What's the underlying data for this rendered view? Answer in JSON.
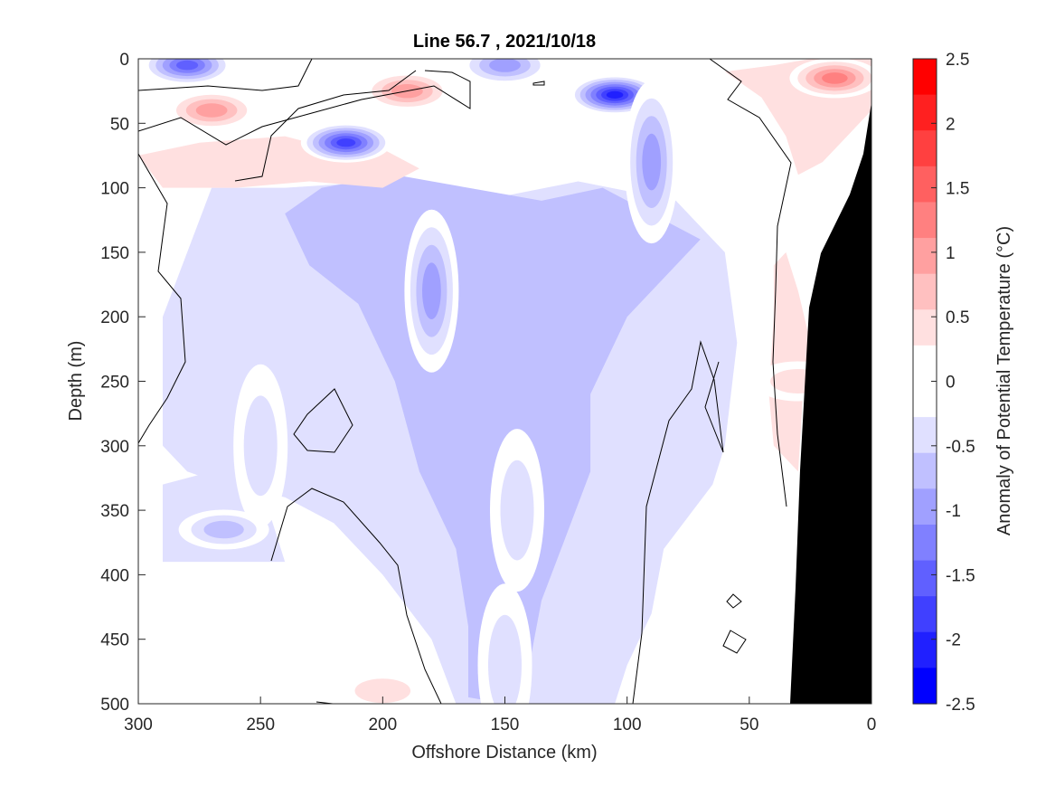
{
  "chart_data": {
    "type": "heatmap",
    "title": "Line 56.7 , 2021/10/18",
    "xlabel": "Offshore Distance (km)",
    "ylabel": "Depth (m)",
    "colorbar_label": "Anomaly of Potential Temperature (°C)",
    "xlim": [
      300,
      0
    ],
    "ylim": [
      0,
      500
    ],
    "x_reversed": true,
    "y_reversed": true,
    "x_ticks": [
      300,
      250,
      200,
      150,
      100,
      50,
      0
    ],
    "y_ticks": [
      0,
      50,
      100,
      150,
      200,
      250,
      300,
      350,
      400,
      450,
      500
    ],
    "colorbar": {
      "range": [
        -2.5,
        2.5
      ],
      "step": 0.25,
      "tick_values": [
        2.5,
        2,
        1.5,
        1,
        0.5,
        0,
        -0.5,
        -1,
        -1.5,
        -2,
        -2.5
      ],
      "tick_labels": [
        "2.5",
        "2",
        "1.5",
        "1",
        "0.5",
        "0",
        "-0.5",
        "-1",
        "-1.5",
        "-2",
        "-2.5"
      ],
      "colors": [
        "#0000ff",
        "#2020ff",
        "#4040ff",
        "#6060ff",
        "#8080ff",
        "#a0a0ff",
        "#c0c0ff",
        "#e0e0ff",
        "#ffffff",
        "#ffffff",
        "#ffe0e0",
        "#ffc0c0",
        "#ffa0a0",
        "#ff8080",
        "#ff6060",
        "#ff4040",
        "#ff2020",
        "#ff0000"
      ]
    },
    "features": [
      {
        "name": "cold-core",
        "x": 105,
        "y": 28,
        "value": -2.0
      },
      {
        "name": "cold-core",
        "x": 215,
        "y": 65,
        "value": -1.75
      },
      {
        "name": "cold-core",
        "x": 280,
        "y": 5,
        "value": -1.5
      },
      {
        "name": "cold-core",
        "x": 150,
        "y": 5,
        "value": -1.0
      },
      {
        "name": "cold-tongue",
        "x": 180,
        "y": 180,
        "value": -1.0
      },
      {
        "name": "cold-tongue",
        "x": 90,
        "y": 80,
        "value": -1.0
      },
      {
        "name": "cold-tongue",
        "x": 145,
        "y": 350,
        "value": -0.5
      },
      {
        "name": "cold-tongue",
        "x": 150,
        "y": 470,
        "value": -0.5
      },
      {
        "name": "cold-tongue",
        "x": 250,
        "y": 300,
        "value": -0.5
      },
      {
        "name": "cold-patch",
        "x": 265,
        "y": 365,
        "value": -0.75
      },
      {
        "name": "warm-core",
        "x": 270,
        "y": 40,
        "value": 1.0
      },
      {
        "name": "warm-core",
        "x": 190,
        "y": 25,
        "value": 1.0
      },
      {
        "name": "warm-core",
        "x": 15,
        "y": 15,
        "value": 1.25
      },
      {
        "name": "warm-core",
        "x": 30,
        "y": 250,
        "value": 0.5
      },
      {
        "name": "warm-patch",
        "x": 200,
        "y": 490,
        "value": 0.5
      }
    ],
    "bathymetry_color": "#000000",
    "grid": false,
    "legend": "none"
  }
}
